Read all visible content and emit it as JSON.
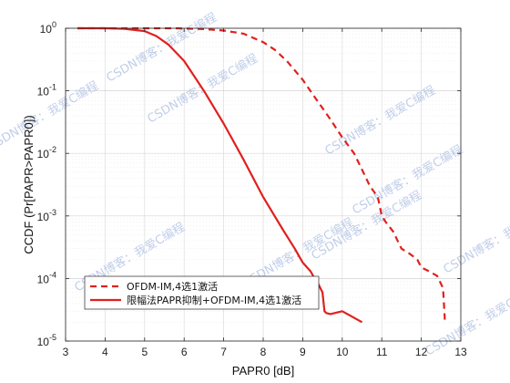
{
  "chart_data": {
    "type": "line",
    "title": "",
    "xlabel": "PAPR0 [dB]",
    "ylabel": "CCDF (Pr[PAPR>PAPR0])",
    "xlim": [
      3,
      13
    ],
    "ylim": [
      1e-05,
      1
    ],
    "yscale": "log",
    "grid": true,
    "legend_position": "bottom-left",
    "x_ticks": [
      "3",
      "4",
      "5",
      "6",
      "7",
      "8",
      "9",
      "10",
      "11",
      "12",
      "13"
    ],
    "y_ticks": [
      {
        "base": "10",
        "exp": "-5"
      },
      {
        "base": "10",
        "exp": "-4"
      },
      {
        "base": "10",
        "exp": "-3"
      },
      {
        "base": "10",
        "exp": "-2"
      },
      {
        "base": "10",
        "exp": "-1"
      },
      {
        "base": "10",
        "exp": "0"
      }
    ],
    "series": [
      {
        "name": "OFDM-IM,4选1激活",
        "color": "#e0201e",
        "style": "dashed",
        "x": [
          3.3,
          5.8,
          6.0,
          6.5,
          7.0,
          7.5,
          8.0,
          8.3,
          8.6,
          9.0,
          9.3,
          9.7,
          10.0,
          10.3,
          10.5,
          10.7,
          10.9,
          11.0,
          11.1,
          11.3,
          11.4,
          11.5,
          11.7,
          11.9,
          12.0,
          12.2,
          12.4,
          12.55,
          12.6
        ],
        "y": [
          1.0,
          1.0,
          0.99,
          0.97,
          0.92,
          0.82,
          0.6,
          0.45,
          0.3,
          0.15,
          0.08,
          0.035,
          0.018,
          0.01,
          0.0055,
          0.003,
          0.002,
          0.001,
          0.0008,
          0.00055,
          0.0004,
          0.0003,
          0.00025,
          0.0002,
          0.00015,
          0.00013,
          0.00011,
          7e-05,
          2e-05
        ]
      },
      {
        "name": "限幅法PAPR抑制+OFDM-IM,4选1激活",
        "color": "#e0201e",
        "style": "solid",
        "x": [
          3.3,
          4.0,
          4.5,
          5.0,
          5.3,
          5.6,
          6.0,
          6.5,
          7.0,
          7.5,
          8.0,
          8.5,
          8.8,
          9.0,
          9.2,
          9.3,
          9.4,
          9.5,
          9.55,
          9.6,
          9.7,
          10.0,
          10.5
        ],
        "y": [
          1.0,
          1.0,
          0.98,
          0.9,
          0.75,
          0.55,
          0.3,
          0.1,
          0.03,
          0.008,
          0.002,
          0.0006,
          0.0003,
          0.00018,
          0.00013,
          0.0001,
          8e-05,
          6e-05,
          3e-05,
          2.8e-05,
          2.7e-05,
          3e-05,
          2e-05
        ]
      }
    ]
  },
  "watermark": {
    "text": "CSDN博客：我爱C编程",
    "color": "#8ea6d8"
  }
}
